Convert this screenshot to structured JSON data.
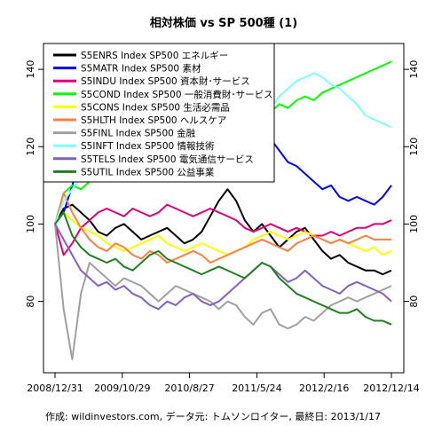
{
  "chart_data": {
    "type": "line",
    "title": "相対株価 vs SP 500種 (1)",
    "caption": "作成: wildinvestors.com, データ元: トムソンロイター, 最終日: 2013/1/17",
    "x_ticks": [
      "2008/12/31",
      "2009/10/29",
      "2010/8/27",
      "2011/5/24",
      "2012/2/16",
      "2012/12/14"
    ],
    "ylim": [
      62,
      146
    ],
    "y_ticks": [
      80,
      100,
      120,
      140
    ],
    "grid": false,
    "legend_position": "top-left",
    "series": [
      {
        "name": "S5ENRS Index SP500 エネルギー",
        "color": "#000000",
        "values": [
          100,
          104,
          105,
          103,
          101,
          98,
          97,
          99,
          100,
          98,
          96,
          97,
          98,
          99,
          97,
          95,
          96,
          98,
          102,
          106,
          109,
          106,
          101,
          98,
          100,
          97,
          94,
          96,
          98,
          99,
          96,
          93,
          91,
          92,
          90,
          89,
          88,
          88,
          87,
          88
        ]
      },
      {
        "name": "S5MATR Index SP500 素材",
        "color": "#0000ff",
        "values": [
          100,
          103,
          110,
          117,
          120,
          123,
          125,
          128,
          127,
          130,
          128,
          126,
          125,
          124,
          122,
          118,
          117,
          119,
          121,
          123,
          125,
          124,
          121,
          118,
          120,
          122,
          119,
          116,
          115,
          113,
          111,
          109,
          110,
          107,
          106,
          107,
          106,
          105,
          107,
          110
        ]
      },
      {
        "name": "S5INDU Index SP500 資本財･サービス",
        "color": "#e0007a",
        "values": [
          100,
          92,
          95,
          99,
          101,
          103,
          104,
          103,
          102,
          104,
          103,
          102,
          103,
          105,
          104,
          103,
          102,
          103,
          104,
          103,
          102,
          101,
          99,
          98,
          99,
          100,
          99,
          98,
          99,
          98,
          97,
          97,
          98,
          97,
          98,
          99,
          99,
          100,
          100,
          101
        ]
      },
      {
        "name": "S5COND Index SP500 一般消費財･サービス",
        "color": "#00ff00",
        "values": [
          100,
          108,
          110,
          109,
          111,
          112,
          113,
          112,
          114,
          116,
          115,
          117,
          119,
          118,
          120,
          121,
          123,
          122,
          124,
          125,
          124,
          126,
          127,
          126,
          128,
          129,
          131,
          130,
          132,
          133,
          132,
          134,
          135,
          136,
          137,
          138,
          139,
          140,
          141,
          142
        ]
      },
      {
        "name": "S5CONS Index SP500 生活必需品",
        "color": "#ffff00",
        "values": [
          100,
          103,
          101,
          99,
          98,
          97,
          95,
          94,
          93,
          94,
          95,
          96,
          97,
          95,
          94,
          93,
          94,
          95,
          94,
          93,
          92,
          93,
          94,
          96,
          97,
          98,
          97,
          96,
          97,
          98,
          97,
          96,
          95,
          96,
          95,
          94,
          93,
          94,
          92,
          93
        ]
      },
      {
        "name": "S5HLTH Index SP500 ヘルスケア",
        "color": "#ff8040",
        "values": [
          100,
          108,
          103,
          99,
          96,
          94,
          93,
          95,
          94,
          92,
          91,
          93,
          92,
          90,
          91,
          92,
          93,
          92,
          90,
          91,
          92,
          93,
          94,
          95,
          96,
          95,
          94,
          93,
          95,
          96,
          97,
          96,
          95,
          96,
          95,
          96,
          97,
          96,
          96,
          96
        ]
      },
      {
        "name": "S5FINL Index SP500 金融",
        "color": "#a0a0a0",
        "values": [
          100,
          78,
          65,
          82,
          90,
          88,
          86,
          84,
          86,
          85,
          84,
          82,
          80,
          82,
          84,
          83,
          82,
          81,
          80,
          78,
          80,
          79,
          76,
          74,
          77,
          78,
          74,
          73,
          74,
          76,
          75,
          77,
          79,
          80,
          81,
          80,
          81,
          82,
          83,
          84
        ]
      },
      {
        "name": "S5INFT Index SP500 情報技術",
        "color": "#80ffff",
        "values": [
          100,
          106,
          109,
          112,
          114,
          115,
          114,
          116,
          117,
          116,
          115,
          117,
          118,
          119,
          118,
          120,
          121,
          120,
          119,
          121,
          122,
          124,
          125,
          127,
          128,
          130,
          133,
          135,
          137,
          138,
          139,
          138,
          136,
          135,
          133,
          131,
          128,
          127,
          126,
          125
        ]
      },
      {
        "name": "S5TELS Index SP500 電気通信サービス",
        "color": "#8060c0",
        "values": [
          100,
          96,
          92,
          88,
          86,
          84,
          85,
          83,
          84,
          82,
          81,
          79,
          78,
          80,
          79,
          81,
          82,
          80,
          79,
          80,
          82,
          84,
          86,
          88,
          90,
          89,
          87,
          85,
          86,
          88,
          86,
          84,
          83,
          82,
          84,
          85,
          84,
          83,
          82,
          80
        ]
      },
      {
        "name": "S5UTIL Index SP500 公益事業",
        "color": "#208020",
        "values": [
          100,
          103,
          97,
          94,
          92,
          91,
          90,
          91,
          89,
          88,
          90,
          92,
          93,
          91,
          90,
          89,
          88,
          87,
          88,
          89,
          88,
          87,
          86,
          88,
          90,
          89,
          86,
          84,
          82,
          81,
          80,
          79,
          78,
          77,
          77,
          78,
          76,
          75,
          75,
          74
        ]
      }
    ]
  }
}
